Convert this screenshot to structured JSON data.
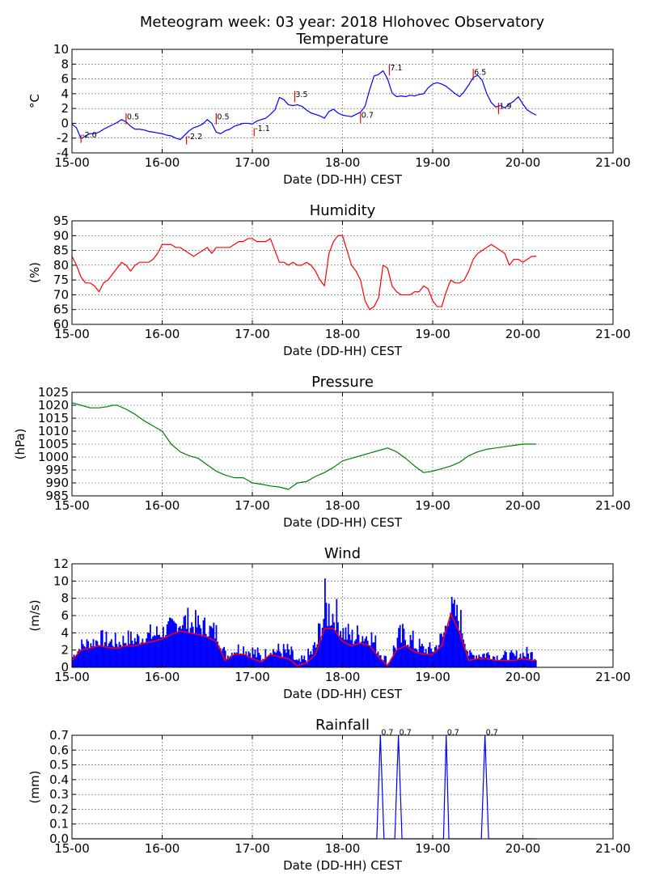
{
  "figure": {
    "title": "Meteogram week: 03 year: 2018 Hlohovec Observatory"
  },
  "chart_data": [
    {
      "type": "line",
      "title": "Temperature",
      "xlabel": "Date (DD-HH) CEST",
      "ylabel": "°C",
      "xlim": [
        0,
        6
      ],
      "ylim": [
        -4,
        10
      ],
      "x_ticks": [
        "15-00",
        "16-00",
        "17-00",
        "18-00",
        "19-00",
        "20-00",
        "21-00"
      ],
      "y_ticks": [
        -4,
        -2,
        0,
        2,
        4,
        6,
        8,
        10
      ],
      "grid": true,
      "color": "#0000ff",
      "annotation_color": "#ff0000",
      "series": [
        {
          "x": [
            0.0,
            0.05,
            0.1,
            0.15,
            0.2,
            0.25,
            0.3,
            0.35,
            0.4,
            0.45,
            0.5,
            0.55,
            0.6,
            0.65,
            0.7,
            0.75,
            0.8,
            0.85,
            0.9,
            0.95,
            1.0,
            1.05,
            1.1,
            1.15,
            1.2,
            1.25,
            1.3,
            1.35,
            1.4,
            1.45,
            1.5,
            1.55,
            1.6,
            1.65,
            1.7,
            1.75,
            1.8,
            1.85,
            1.9,
            1.95,
            2.0,
            2.05,
            2.1,
            2.15,
            2.2,
            2.25,
            2.3,
            2.35,
            2.4,
            2.45,
            2.5,
            2.55,
            2.6,
            2.65,
            2.7,
            2.75,
            2.8,
            2.85,
            2.9,
            2.95,
            3.0,
            3.05,
            3.1,
            3.15,
            3.2,
            3.25,
            3.3,
            3.35,
            3.4,
            3.45,
            3.5,
            3.55,
            3.6,
            3.65,
            3.7,
            3.75,
            3.8,
            3.85,
            3.9,
            3.95,
            4.0,
            4.05,
            4.1,
            4.15,
            4.2,
            4.25,
            4.3,
            4.35,
            4.4,
            4.45,
            4.5,
            4.55,
            4.6,
            4.65,
            4.7,
            4.75,
            4.8,
            4.85,
            4.9,
            4.95,
            5.0,
            5.05,
            5.1,
            5.15
          ],
          "y": [
            -0.1,
            -0.6,
            -2.1,
            -1.7,
            -1.4,
            -1.4,
            -1.2,
            -0.8,
            -0.5,
            -0.2,
            0.1,
            0.5,
            0.2,
            -0.4,
            -0.8,
            -0.8,
            -0.9,
            -1.1,
            -1.2,
            -1.3,
            -1.4,
            -1.6,
            -1.7,
            -2.0,
            -2.2,
            -1.6,
            -1.0,
            -0.6,
            -0.4,
            -0.1,
            0.5,
            0.0,
            -1.2,
            -1.4,
            -1.0,
            -0.8,
            -0.4,
            -0.2,
            0.0,
            0.0,
            -0.1,
            0.3,
            0.5,
            0.7,
            1.2,
            1.8,
            3.5,
            3.2,
            2.5,
            2.4,
            2.5,
            2.3,
            1.8,
            1.4,
            1.2,
            1.0,
            0.7,
            1.6,
            1.9,
            1.4,
            1.1,
            1.0,
            0.9,
            1.2,
            1.5,
            2.3,
            4.5,
            6.4,
            6.6,
            7.1,
            6.0,
            4.1,
            3.6,
            3.7,
            3.6,
            3.8,
            3.7,
            3.9,
            4.0,
            4.8,
            5.3,
            5.5,
            5.3,
            5.0,
            4.5,
            4.0,
            3.6,
            4.3,
            5.2,
            6.2,
            6.5,
            5.8,
            4.0,
            2.8,
            2.2,
            2.4,
            2.1,
            2.6,
            3.0,
            3.6,
            2.6,
            1.8,
            1.4,
            1.1
          ]
        }
      ],
      "annotations": [
        {
          "x": 0.1,
          "y": -2.0,
          "label": "-2.0"
        },
        {
          "x": 0.6,
          "y": 0.5,
          "label": "0.5"
        },
        {
          "x": 1.27,
          "y": -2.2,
          "label": "-2.2"
        },
        {
          "x": 1.6,
          "y": 0.5,
          "label": "0.5"
        },
        {
          "x": 2.02,
          "y": -1.1,
          "label": "-1.1"
        },
        {
          "x": 2.47,
          "y": 3.5,
          "label": "3.5"
        },
        {
          "x": 3.2,
          "y": 0.7,
          "label": "0.7"
        },
        {
          "x": 3.52,
          "y": 7.1,
          "label": "7.1"
        },
        {
          "x": 4.45,
          "y": 6.5,
          "label": "6.5"
        },
        {
          "x": 4.73,
          "y": 1.9,
          "label": "1.9"
        }
      ]
    },
    {
      "type": "line",
      "title": "Humidity",
      "xlabel": "Date (DD-HH) CEST",
      "ylabel": "(%)",
      "xlim": [
        0,
        6
      ],
      "ylim": [
        60,
        95
      ],
      "x_ticks": [
        "15-00",
        "16-00",
        "17-00",
        "18-00",
        "19-00",
        "20-00",
        "21-00"
      ],
      "y_ticks": [
        60,
        65,
        70,
        75,
        80,
        85,
        90,
        95
      ],
      "grid": true,
      "color": "#ff0000",
      "series": [
        {
          "x": [
            0.0,
            0.05,
            0.1,
            0.15,
            0.2,
            0.25,
            0.3,
            0.35,
            0.4,
            0.45,
            0.5,
            0.55,
            0.6,
            0.65,
            0.7,
            0.75,
            0.8,
            0.85,
            0.9,
            0.95,
            1.0,
            1.05,
            1.1,
            1.15,
            1.2,
            1.25,
            1.3,
            1.35,
            1.4,
            1.45,
            1.5,
            1.55,
            1.6,
            1.65,
            1.7,
            1.75,
            1.8,
            1.85,
            1.9,
            1.95,
            2.0,
            2.05,
            2.1,
            2.15,
            2.2,
            2.25,
            2.3,
            2.35,
            2.4,
            2.45,
            2.5,
            2.55,
            2.6,
            2.65,
            2.7,
            2.75,
            2.8,
            2.85,
            2.9,
            2.95,
            3.0,
            3.05,
            3.1,
            3.15,
            3.2,
            3.25,
            3.3,
            3.35,
            3.4,
            3.45,
            3.5,
            3.55,
            3.6,
            3.65,
            3.7,
            3.75,
            3.8,
            3.85,
            3.9,
            3.95,
            4.0,
            4.05,
            4.1,
            4.15,
            4.2,
            4.25,
            4.3,
            4.35,
            4.4,
            4.45,
            4.5,
            4.55,
            4.6,
            4.65,
            4.7,
            4.75,
            4.8,
            4.85,
            4.9,
            4.95,
            5.0,
            5.05,
            5.1,
            5.15
          ],
          "y": [
            83,
            80,
            76,
            74,
            74,
            73,
            71,
            74,
            75,
            77,
            79,
            81,
            80,
            78,
            80,
            81,
            81,
            81,
            82,
            84,
            87,
            87,
            87,
            86,
            86,
            85,
            84,
            83,
            84,
            85,
            86,
            84,
            86,
            86,
            86,
            86,
            87,
            88,
            88,
            89,
            89,
            88,
            88,
            88,
            89,
            85,
            81,
            81,
            80,
            81,
            80,
            80,
            81,
            80,
            78,
            75,
            73,
            84,
            88,
            90,
            90,
            85,
            80,
            78,
            75,
            68,
            65,
            66,
            69,
            80,
            79,
            73,
            71,
            70,
            70,
            70,
            71,
            71,
            73,
            72,
            68,
            66,
            66,
            71,
            75,
            74,
            74,
            75,
            78,
            82,
            84,
            85,
            86,
            87,
            86,
            85,
            84,
            80,
            82,
            82,
            81,
            82,
            83,
            83
          ]
        }
      ]
    },
    {
      "type": "line",
      "title": "Pressure",
      "xlabel": "Date (DD-HH) CEST",
      "ylabel": "(hPa)",
      "xlim": [
        0,
        6
      ],
      "ylim": [
        985,
        1025
      ],
      "x_ticks": [
        "15-00",
        "16-00",
        "17-00",
        "18-00",
        "19-00",
        "20-00",
        "21-00"
      ],
      "y_ticks": [
        985,
        990,
        995,
        1000,
        1005,
        1010,
        1015,
        1020,
        1025
      ],
      "grid": true,
      "color": "#008000",
      "series": [
        {
          "x": [
            0.0,
            0.1,
            0.2,
            0.3,
            0.4,
            0.45,
            0.5,
            0.6,
            0.7,
            0.8,
            0.9,
            1.0,
            1.1,
            1.2,
            1.3,
            1.4,
            1.5,
            1.6,
            1.7,
            1.8,
            1.9,
            2.0,
            2.1,
            2.2,
            2.3,
            2.4,
            2.5,
            2.6,
            2.7,
            2.8,
            2.9,
            3.0,
            3.1,
            3.2,
            3.3,
            3.4,
            3.5,
            3.6,
            3.7,
            3.8,
            3.9,
            4.0,
            4.1,
            4.2,
            4.3,
            4.4,
            4.5,
            4.6,
            4.7,
            4.8,
            4.9,
            5.0,
            5.1,
            5.15
          ],
          "y": [
            1021,
            1020,
            1019,
            1019,
            1019.5,
            1020,
            1020,
            1018.5,
            1016.5,
            1014,
            1012,
            1010,
            1005,
            1002,
            1000.5,
            999.5,
            997,
            994.5,
            993,
            992,
            992,
            990,
            989.5,
            988.8,
            988.4,
            987.5,
            990,
            990.5,
            992.5,
            994,
            996,
            998.5,
            999.5,
            1000.5,
            1001.5,
            1002.5,
            1003.5,
            1002,
            999.5,
            996.5,
            994,
            994.5,
            995.5,
            996.5,
            998,
            1000.5,
            1002,
            1003,
            1003.5,
            1004,
            1004.5,
            1005,
            1005,
            1005
          ]
        }
      ]
    },
    {
      "type": "area",
      "title": "Wind",
      "xlabel": "Date (DD-HH) CEST",
      "ylabel": "(m/s)",
      "xlim": [
        0,
        6
      ],
      "ylim": [
        0,
        12
      ],
      "x_ticks": [
        "15-00",
        "16-00",
        "17-00",
        "18-00",
        "19-00",
        "20-00",
        "21-00"
      ],
      "y_ticks": [
        0,
        2,
        4,
        6,
        8,
        10,
        12
      ],
      "grid": true,
      "gust_color": "#0000ff",
      "avg_color": "#ff0000",
      "series": [
        {
          "name": "gust",
          "x": [
            0.0,
            0.1,
            0.2,
            0.3,
            0.4,
            0.5,
            0.6,
            0.7,
            0.8,
            0.9,
            1.0,
            1.1,
            1.2,
            1.3,
            1.4,
            1.5,
            1.6,
            1.7,
            1.8,
            1.9,
            2.0,
            2.1,
            2.2,
            2.3,
            2.4,
            2.5,
            2.6,
            2.7,
            2.8,
            2.9,
            3.0,
            3.1,
            3.2,
            3.3,
            3.4,
            3.5,
            3.6,
            3.7,
            3.8,
            3.9,
            4.0,
            4.1,
            4.2,
            4.3,
            4.4,
            4.5,
            4.6,
            4.7,
            4.8,
            4.9,
            5.0,
            5.1,
            5.15
          ],
          "y": [
            2.0,
            3.5,
            4.0,
            4.5,
            4.2,
            4.0,
            4.5,
            4.5,
            5.0,
            5.2,
            5.5,
            6.0,
            7.5,
            7.0,
            6.5,
            6.0,
            5.5,
            2.0,
            3.0,
            3.5,
            3.0,
            2.0,
            3.0,
            3.0,
            3.0,
            1.0,
            2.0,
            4.0,
            10.5,
            9.0,
            6.0,
            5.0,
            5.5,
            5.5,
            3.0,
            1.0,
            5.0,
            5.5,
            4.0,
            3.0,
            3.0,
            5.0,
            8.5,
            7.5,
            2.0,
            2.5,
            2.5,
            2.0,
            2.0,
            2.0,
            2.5,
            2.5,
            2.0
          ]
        },
        {
          "name": "average",
          "x": [
            0.0,
            0.1,
            0.2,
            0.3,
            0.4,
            0.5,
            0.6,
            0.7,
            0.8,
            0.9,
            1.0,
            1.1,
            1.2,
            1.3,
            1.4,
            1.5,
            1.6,
            1.7,
            1.8,
            1.9,
            2.0,
            2.1,
            2.2,
            2.3,
            2.4,
            2.5,
            2.6,
            2.7,
            2.8,
            2.9,
            3.0,
            3.1,
            3.2,
            3.3,
            3.4,
            3.5,
            3.6,
            3.7,
            3.8,
            3.9,
            4.0,
            4.1,
            4.2,
            4.3,
            4.4,
            4.5,
            4.6,
            4.7,
            4.8,
            4.9,
            5.0,
            5.1,
            5.15
          ],
          "y": [
            0.8,
            2.0,
            2.2,
            2.5,
            2.3,
            2.2,
            2.5,
            2.5,
            2.8,
            3.0,
            3.3,
            3.8,
            4.2,
            4.0,
            3.8,
            3.5,
            3.0,
            0.8,
            1.5,
            1.5,
            1.0,
            0.6,
            1.5,
            1.2,
            1.0,
            0.2,
            0.5,
            1.5,
            4.5,
            4.5,
            3.0,
            2.5,
            2.8,
            2.5,
            1.2,
            0.2,
            2.0,
            2.5,
            1.8,
            1.5,
            1.5,
            2.5,
            6.2,
            4.0,
            0.8,
            1.0,
            1.0,
            0.8,
            0.8,
            0.8,
            1.0,
            0.8,
            0.8
          ]
        }
      ]
    },
    {
      "type": "line",
      "title": "Rainfall",
      "xlabel": "Date (DD-HH) CEST",
      "ylabel": "(mm)",
      "xlim": [
        0,
        6
      ],
      "ylim": [
        0,
        0.7
      ],
      "x_ticks": [
        "15-00",
        "16-00",
        "17-00",
        "18-00",
        "19-00",
        "20-00",
        "21-00"
      ],
      "y_ticks": [
        0.0,
        0.1,
        0.2,
        0.3,
        0.4,
        0.5,
        0.6,
        0.7
      ],
      "grid": true,
      "color": "#0000ff",
      "series": [
        {
          "x": [
            0.0,
            3.38,
            3.42,
            3.46,
            3.58,
            3.62,
            3.66,
            4.12,
            4.15,
            4.18,
            4.54,
            4.58,
            4.62,
            5.15
          ],
          "y": [
            0.0,
            0.0,
            0.7,
            0.0,
            0.0,
            0.7,
            0.0,
            0.0,
            0.7,
            0.0,
            0.0,
            0.7,
            0.0,
            0.0
          ]
        }
      ],
      "annotations": [
        {
          "x": 3.42,
          "y": 0.7,
          "label": "0.7"
        },
        {
          "x": 3.62,
          "y": 0.7,
          "label": "0.7"
        },
        {
          "x": 4.15,
          "y": 0.7,
          "label": "0.7"
        },
        {
          "x": 4.58,
          "y": 0.7,
          "label": "0.7"
        }
      ]
    }
  ]
}
